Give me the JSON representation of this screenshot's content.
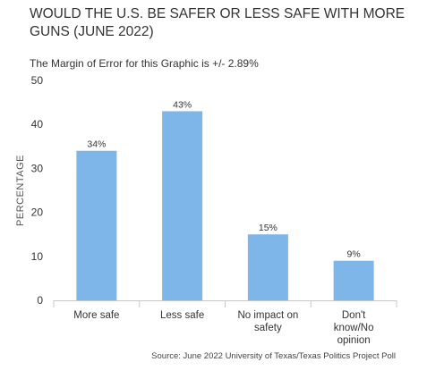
{
  "chart_data": {
    "type": "bar",
    "title": "WOULD THE U.S. BE SAFER OR LESS SAFE WITH MORE GUNS (JUNE 2022)",
    "subtitle": "The Margin of Error for this Graphic is +/- 2.89%",
    "ylabel": "PERCENTAGE",
    "xlabel": "",
    "categories": [
      "More safe",
      "Less safe",
      "No impact on safety",
      "Don't know/No opinion"
    ],
    "category_lines": [
      [
        "More safe"
      ],
      [
        "Less safe"
      ],
      [
        "No impact on",
        "safety"
      ],
      [
        "Don't",
        "know/No",
        "opinion"
      ]
    ],
    "values": [
      34,
      43,
      15,
      9
    ],
    "data_labels": [
      "34%",
      "43%",
      "15%",
      "9%"
    ],
    "ylim": [
      0,
      50
    ],
    "yticks": [
      0,
      10,
      20,
      30,
      40,
      50
    ],
    "bar_color": "#7eb6ea",
    "grid": false,
    "source": "Source: June 2022 University of Texas/Texas Politics Project Poll"
  }
}
